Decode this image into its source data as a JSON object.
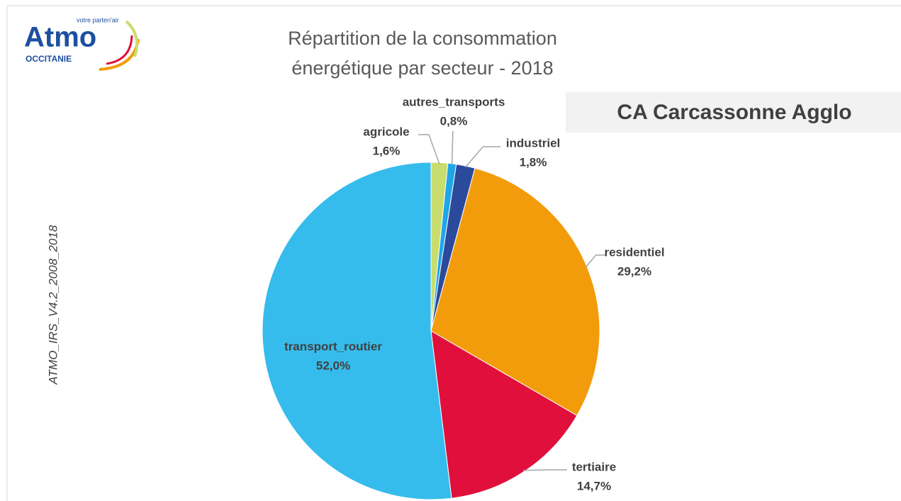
{
  "logo": {
    "name": "Atmo",
    "tagline": "votre parten'air",
    "region": "OCCITANIE"
  },
  "side_note": "ATMO_IRS_V4.2_2008_2018",
  "territory": "CA Carcassonne Agglo",
  "chart_data": {
    "type": "pie",
    "title": [
      "Répartition de la consommation",
      "énergétique par secteur - 2018"
    ],
    "categories": [
      "agricole",
      "autres_transports",
      "industriel",
      "residentiel",
      "tertiaire",
      "transport_routier"
    ],
    "values": [
      1.6,
      0.8,
      1.8,
      29.2,
      14.7,
      52.0
    ],
    "value_labels": [
      "1,6%",
      "0,8%",
      "1,8%",
      "29,2%",
      "14,7%",
      "52,0%"
    ],
    "colors": [
      "#c9dd6e",
      "#1ea6e8",
      "#2c4a9c",
      "#f39c0b",
      "#e00f3b",
      "#36bcec"
    ]
  }
}
